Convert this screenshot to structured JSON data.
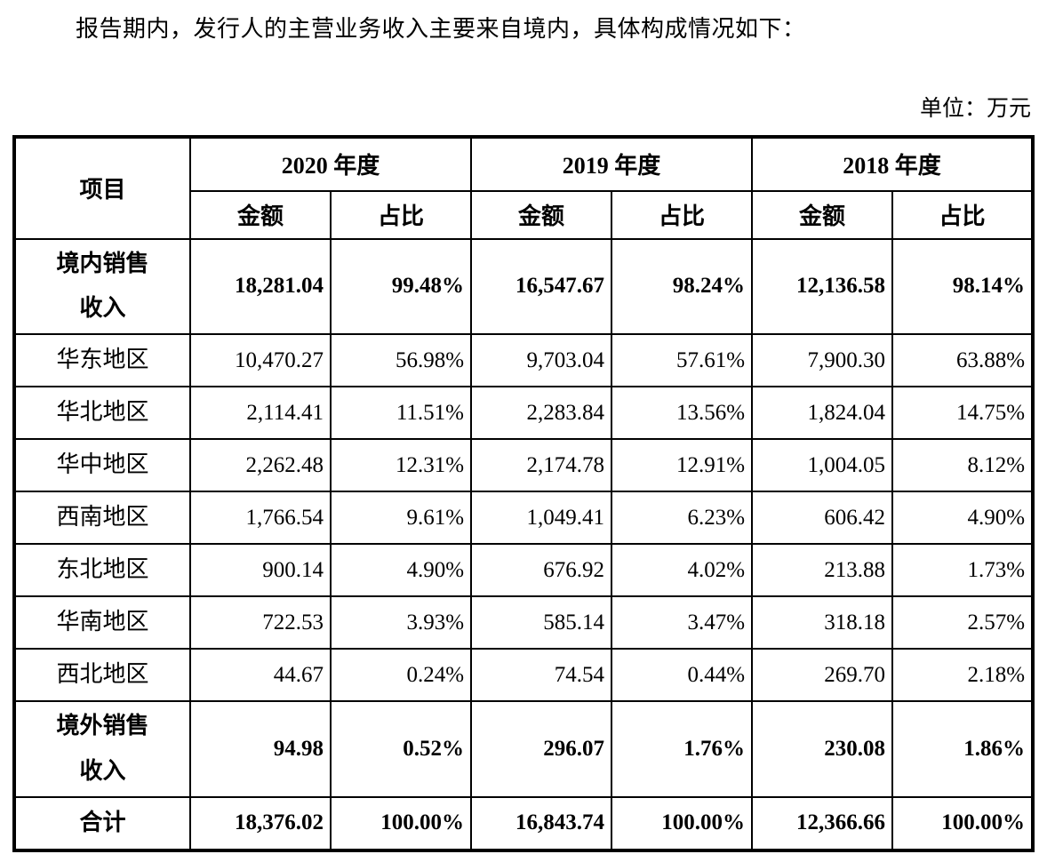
{
  "intro": "报告期内，发行人的主营业务收入主要来自境内，具体构成情况如下：",
  "unit_label": "单位：万元",
  "table": {
    "item_header": "项目",
    "year_groups": [
      {
        "label": "2020 年度"
      },
      {
        "label": "2019 年度"
      },
      {
        "label": "2018 年度"
      }
    ],
    "sub_headers": {
      "amount": "金额",
      "ratio": "占比"
    },
    "rows": [
      {
        "label": "境内销售\n收入",
        "emphasis": true,
        "values": [
          "18,281.04",
          "99.48%",
          "16,547.67",
          "98.24%",
          "12,136.58",
          "98.14%"
        ]
      },
      {
        "label": "华东地区",
        "emphasis": false,
        "values": [
          "10,470.27",
          "56.98%",
          "9,703.04",
          "57.61%",
          "7,900.30",
          "63.88%"
        ]
      },
      {
        "label": "华北地区",
        "emphasis": false,
        "values": [
          "2,114.41",
          "11.51%",
          "2,283.84",
          "13.56%",
          "1,824.04",
          "14.75%"
        ]
      },
      {
        "label": "华中地区",
        "emphasis": false,
        "values": [
          "2,262.48",
          "12.31%",
          "2,174.78",
          "12.91%",
          "1,004.05",
          "8.12%"
        ]
      },
      {
        "label": "西南地区",
        "emphasis": false,
        "values": [
          "1,766.54",
          "9.61%",
          "1,049.41",
          "6.23%",
          "606.42",
          "4.90%"
        ]
      },
      {
        "label": "东北地区",
        "emphasis": false,
        "values": [
          "900.14",
          "4.90%",
          "676.92",
          "4.02%",
          "213.88",
          "1.73%"
        ]
      },
      {
        "label": "华南地区",
        "emphasis": false,
        "values": [
          "722.53",
          "3.93%",
          "585.14",
          "3.47%",
          "318.18",
          "2.57%"
        ]
      },
      {
        "label": "西北地区",
        "emphasis": false,
        "values": [
          "44.67",
          "0.24%",
          "74.54",
          "0.44%",
          "269.70",
          "2.18%"
        ]
      },
      {
        "label": "境外销售\n收入",
        "emphasis": true,
        "values": [
          "94.98",
          "0.52%",
          "296.07",
          "1.76%",
          "230.08",
          "1.86%"
        ]
      },
      {
        "label": "合计",
        "emphasis": true,
        "values": [
          "18,376.02",
          "100.00%",
          "16,843.74",
          "100.00%",
          "12,366.66",
          "100.00%"
        ]
      }
    ]
  }
}
